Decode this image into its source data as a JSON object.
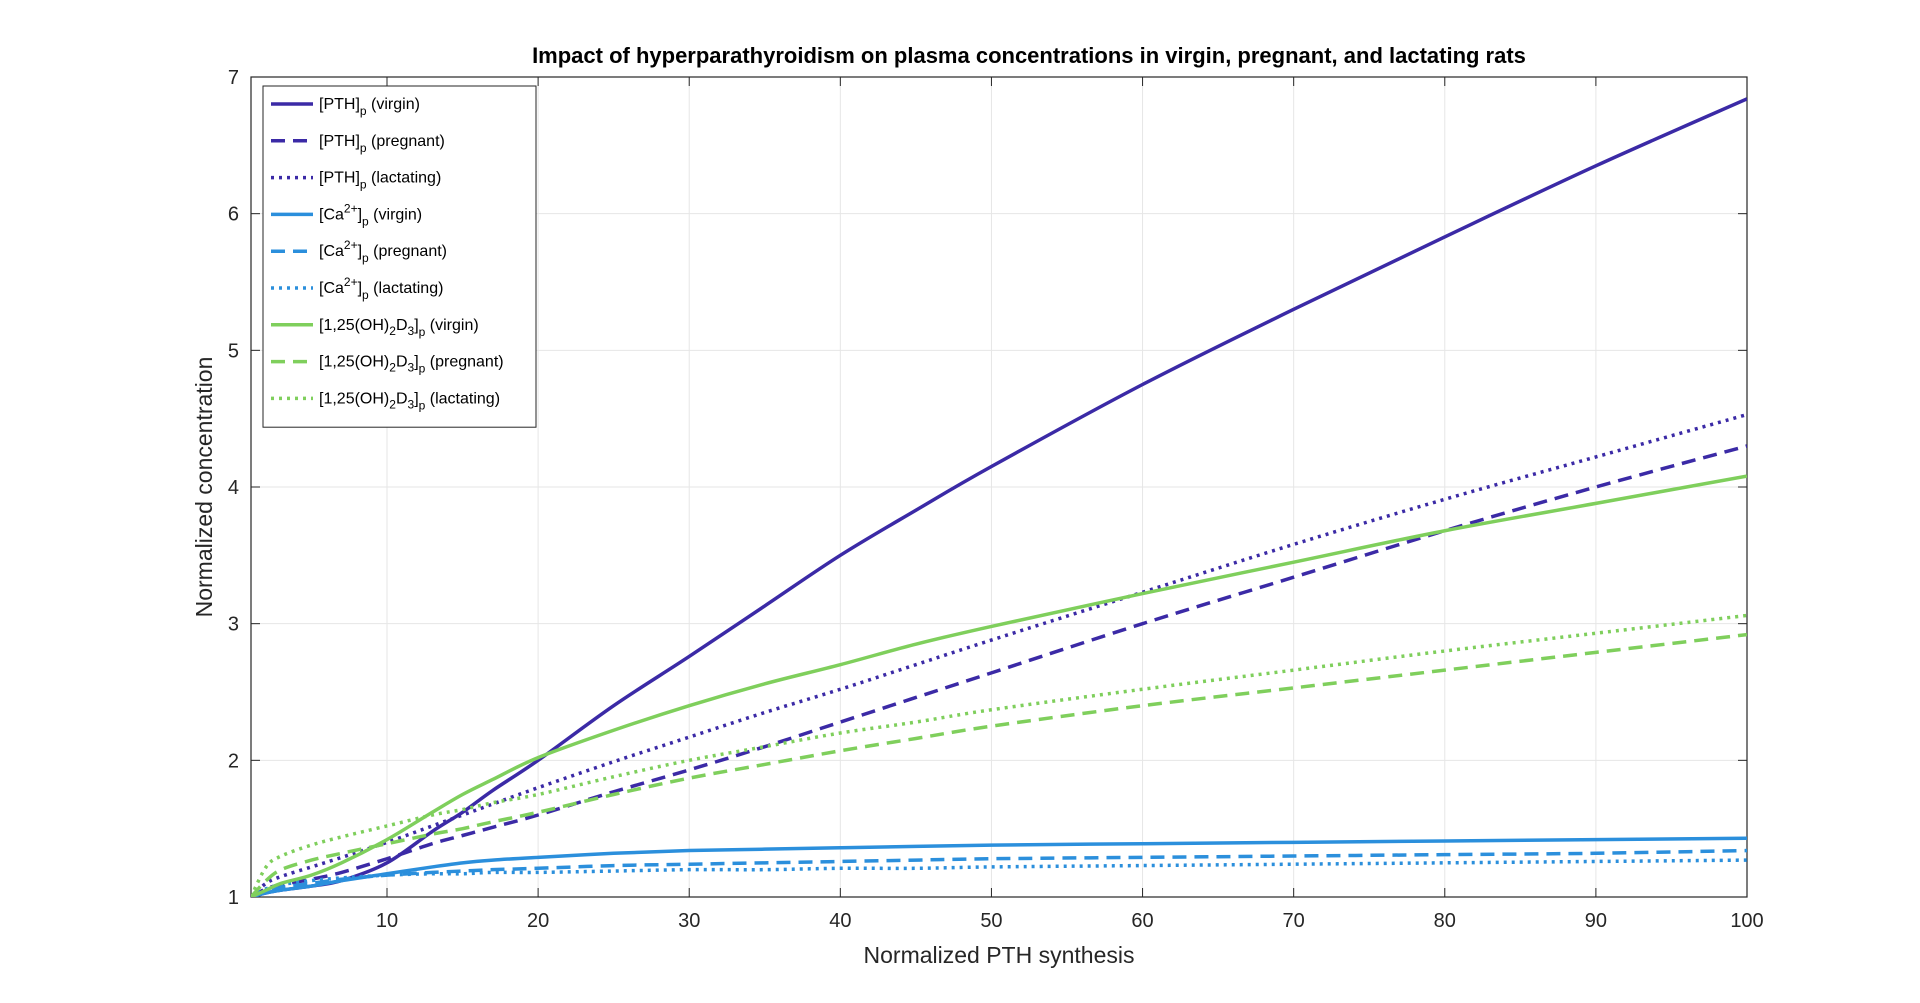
{
  "chart_data": {
    "type": "line",
    "title": "Impact of hyperparathyroidism on plasma concentrations in virgin, pregnant, and lactating rats",
    "xlabel": "Normalized PTH synthesis",
    "ylabel": "Normalized concentration",
    "xlim": [
      1,
      100
    ],
    "ylim": [
      1,
      7
    ],
    "x_ticks": [
      10,
      20,
      30,
      40,
      50,
      60,
      70,
      80,
      90,
      100
    ],
    "y_ticks": [
      1,
      2,
      3,
      4,
      5,
      6,
      7
    ],
    "grid": true,
    "legend_position": "top-left",
    "x": [
      1,
      2,
      3,
      5,
      7,
      10,
      13,
      15,
      17,
      20,
      25,
      30,
      35,
      40,
      45,
      50,
      60,
      70,
      80,
      90,
      100
    ],
    "series": [
      {
        "name": "[PTH]p (virgin)",
        "legend": {
          "base": "[PTH]",
          "sub": "p",
          "sup": "",
          "suffix": " (virgin)"
        },
        "color": "#3b2aa6",
        "dash": "solid",
        "values": [
          1.0,
          1.03,
          1.05,
          1.08,
          1.12,
          1.25,
          1.48,
          1.62,
          1.78,
          2.0,
          2.4,
          2.76,
          3.13,
          3.5,
          3.83,
          4.15,
          4.75,
          5.3,
          5.83,
          6.35,
          6.84
        ]
      },
      {
        "name": "[PTH]p (pregnant)",
        "legend": {
          "base": "[PTH]",
          "sub": "p",
          "sup": "",
          "suffix": " (pregnant)"
        },
        "color": "#3b2aa6",
        "dash": "dashed",
        "values": [
          1.0,
          1.06,
          1.09,
          1.13,
          1.18,
          1.28,
          1.39,
          1.45,
          1.51,
          1.6,
          1.77,
          1.93,
          2.1,
          2.28,
          2.46,
          2.64,
          3.0,
          3.34,
          3.68,
          4.0,
          4.3
        ]
      },
      {
        "name": "[PTH]p (lactating)",
        "legend": {
          "base": "[PTH]",
          "sub": "p",
          "sup": "",
          "suffix": " (lactating)"
        },
        "color": "#3b2aa6",
        "dash": "dotted",
        "values": [
          1.0,
          1.1,
          1.15,
          1.22,
          1.29,
          1.4,
          1.52,
          1.6,
          1.68,
          1.8,
          1.99,
          2.17,
          2.35,
          2.52,
          2.7,
          2.88,
          3.23,
          3.58,
          3.91,
          4.22,
          4.53
        ]
      },
      {
        "name": "[Ca2+]p (virgin)",
        "legend": {
          "base": "[Ca",
          "sub": "p",
          "sup": "2+",
          "suffix": " (virgin)"
        },
        "color": "#2b8fdc",
        "dash": "solid",
        "values": [
          1.0,
          1.03,
          1.05,
          1.08,
          1.12,
          1.17,
          1.22,
          1.25,
          1.27,
          1.29,
          1.32,
          1.34,
          1.35,
          1.36,
          1.37,
          1.38,
          1.39,
          1.4,
          1.41,
          1.42,
          1.43
        ]
      },
      {
        "name": "[Ca2+]p (pregnant)",
        "legend": {
          "base": "[Ca",
          "sub": "p",
          "sup": "2+",
          "suffix": " (pregnant)"
        },
        "color": "#2b8fdc",
        "dash": "dashed",
        "values": [
          1.0,
          1.04,
          1.07,
          1.1,
          1.13,
          1.16,
          1.18,
          1.19,
          1.2,
          1.21,
          1.23,
          1.24,
          1.25,
          1.26,
          1.27,
          1.28,
          1.29,
          1.3,
          1.31,
          1.32,
          1.34
        ]
      },
      {
        "name": "[Ca2+]p (lactating)",
        "legend": {
          "base": "[Ca",
          "sub": "p",
          "sup": "2+",
          "suffix": " (lactating)"
        },
        "color": "#2b8fdc",
        "dash": "dotted",
        "values": [
          1.0,
          1.06,
          1.09,
          1.12,
          1.14,
          1.16,
          1.17,
          1.17,
          1.18,
          1.18,
          1.19,
          1.2,
          1.2,
          1.21,
          1.21,
          1.22,
          1.23,
          1.24,
          1.25,
          1.26,
          1.27
        ]
      },
      {
        "name": "[1,25(OH)2D3]p (virgin)",
        "legend": {
          "base": "[1,25(OH)",
          "sub2": "2",
          "mid": "D",
          "sub3": "3",
          "tail": "]",
          "sub": "p",
          "suffix": " (virgin)"
        },
        "color": "#7fcf5c",
        "dash": "solid",
        "values": [
          1.0,
          1.05,
          1.1,
          1.16,
          1.25,
          1.42,
          1.62,
          1.75,
          1.86,
          2.02,
          2.22,
          2.4,
          2.56,
          2.7,
          2.85,
          2.98,
          3.22,
          3.45,
          3.68,
          3.88,
          4.08
        ]
      },
      {
        "name": "[1,25(OH)2D3]p (pregnant)",
        "legend": {
          "base": "[1,25(OH)",
          "sub2": "2",
          "mid": "D",
          "sub3": "3",
          "tail": "]",
          "sub": "p",
          "suffix": " (pregnant)"
        },
        "color": "#7fcf5c",
        "dash": "dashed",
        "values": [
          1.0,
          1.12,
          1.2,
          1.27,
          1.32,
          1.39,
          1.46,
          1.5,
          1.55,
          1.62,
          1.75,
          1.87,
          1.97,
          2.07,
          2.16,
          2.25,
          2.4,
          2.53,
          2.66,
          2.79,
          2.92
        ]
      },
      {
        "name": "[1,25(OH)2D3]p (lactating)",
        "legend": {
          "base": "[1,25(OH)",
          "sub2": "2",
          "mid": "D",
          "sub3": "3",
          "tail": "]",
          "sub": "p",
          "suffix": " (lactating)"
        },
        "color": "#7fcf5c",
        "dash": "dotted",
        "values": [
          1.0,
          1.22,
          1.3,
          1.38,
          1.44,
          1.52,
          1.6,
          1.64,
          1.69,
          1.75,
          1.88,
          2.0,
          2.1,
          2.2,
          2.28,
          2.37,
          2.52,
          2.66,
          2.8,
          2.93,
          3.06
        ]
      }
    ]
  }
}
